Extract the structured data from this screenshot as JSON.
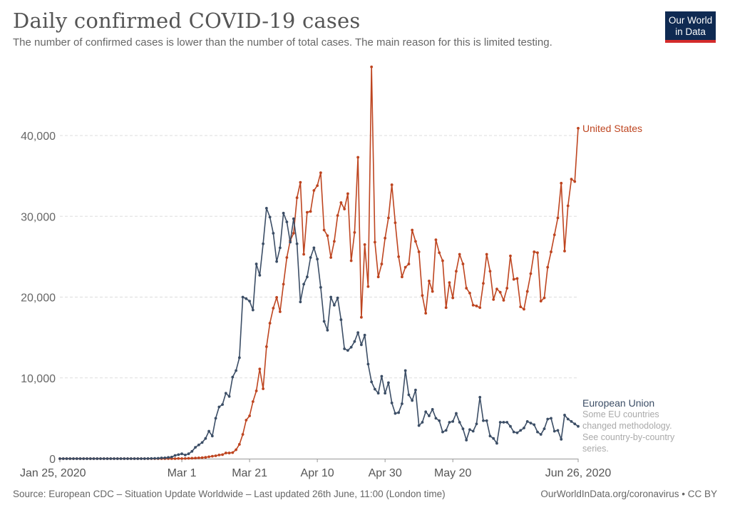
{
  "header": {
    "title": "Daily confirmed COVID-19 cases",
    "subtitle": "The number of confirmed cases is lower than the number of total cases. The main reason for this is limited testing.",
    "logo_line1": "Our World",
    "logo_line2": "in Data"
  },
  "footer": {
    "source": "Source: European CDC – Situation Update Worldwide – Last updated 26th June, 11:00 (London time)",
    "credit": "OurWorldInData.org/coronavirus • CC BY"
  },
  "chart_data": {
    "type": "line",
    "title": "Daily confirmed COVID-19 cases",
    "xlabel": "",
    "ylabel": "",
    "xlim": [
      "2020-01-25",
      "2020-06-26"
    ],
    "x_frequency": "daily",
    "ylim": [
      0,
      48500
    ],
    "grid": "horizontal dashed",
    "legend": "inline labels at line ends (right)",
    "x_tick_labels": [
      "Jan 25, 2020",
      "Mar 1",
      "Mar 21",
      "Apr 10",
      "Apr 30",
      "May 20",
      "Jun 26, 2020"
    ],
    "x_tick_dates": [
      "2020-01-25",
      "2020-03-01",
      "2020-03-21",
      "2020-04-10",
      "2020-04-30",
      "2020-05-20",
      "2020-06-26"
    ],
    "y_ticks": [
      0,
      10000,
      20000,
      30000,
      40000
    ],
    "y_tick_labels": [
      "0",
      "10,000",
      "20,000",
      "30,000",
      "40,000"
    ],
    "series": [
      {
        "name": "United States",
        "color": "#be4520",
        "values": [
          0,
          0,
          0,
          0,
          0,
          0,
          1,
          0,
          0,
          0,
          1,
          0,
          0,
          0,
          0,
          0,
          0,
          0,
          0,
          0,
          0,
          0,
          0,
          0,
          0,
          0,
          0,
          0,
          0,
          1,
          1,
          0,
          7,
          3,
          2,
          20,
          10,
          20,
          40,
          50,
          70,
          100,
          120,
          160,
          230,
          300,
          350,
          450,
          500,
          700,
          700,
          750,
          1100,
          1770,
          3000,
          4770,
          5300,
          7060,
          8390,
          11100,
          8650,
          13860,
          16770,
          18630,
          19960,
          18190,
          21600,
          24900,
          27000,
          27900,
          32300,
          34200,
          25300,
          30500,
          30600,
          33200,
          33800,
          35400,
          28300,
          27600,
          24900,
          26900,
          30100,
          31700,
          30900,
          32800,
          24500,
          28000,
          37300,
          17500,
          26500,
          21300,
          48500,
          26800,
          22500,
          24100,
          27300,
          29800,
          33900,
          29200,
          25000,
          22500,
          23700,
          24100,
          28300,
          26900,
          25600,
          20200,
          18000,
          22000,
          20700,
          27100,
          25500,
          24500,
          18700,
          21800,
          19900,
          23200,
          25300,
          24100,
          21100,
          20500,
          19000,
          18900,
          18700,
          21700,
          25300,
          23200,
          19700,
          21000,
          20600,
          19600,
          21100,
          25100,
          22200,
          22300,
          18800,
          18500,
          20700,
          22900,
          25600,
          25500,
          19500,
          19900,
          23700,
          25600,
          27700,
          29800,
          34100,
          25700,
          31300,
          34600,
          34300,
          40900
        ]
      },
      {
        "name": "European Union",
        "note": [
          "Some EU countries",
          "changed methodology.",
          "See country-by-country",
          "series."
        ],
        "color": "#3c4e66",
        "values": [
          0,
          0,
          0,
          1,
          0,
          0,
          0,
          2,
          1,
          0,
          0,
          0,
          0,
          1,
          2,
          0,
          0,
          1,
          0,
          0,
          0,
          0,
          1,
          1,
          2,
          3,
          10,
          20,
          30,
          40,
          90,
          100,
          150,
          200,
          400,
          500,
          600,
          450,
          600,
          900,
          1400,
          1700,
          2000,
          2500,
          3400,
          2800,
          5000,
          6400,
          6700,
          8100,
          7700,
          10100,
          10900,
          12500,
          20000,
          19800,
          19500,
          18400,
          24100,
          22700,
          26600,
          31000,
          29900,
          27900,
          24400,
          26100,
          30400,
          29300,
          26800,
          29700,
          26600,
          19400,
          21600,
          22500,
          24900,
          26100,
          24700,
          21200,
          17000,
          15900,
          20000,
          19000,
          19900,
          17200,
          13600,
          13400,
          13800,
          14500,
          15600,
          14100,
          15300,
          11700,
          9500,
          8600,
          8100,
          10200,
          8100,
          9400,
          6900,
          5600,
          5700,
          6800,
          10900,
          7900,
          7200,
          8500,
          4100,
          4500,
          5800,
          5300,
          6100,
          5000,
          4700,
          3300,
          3500,
          4500,
          4600,
          5600,
          4500,
          3700,
          2300,
          3600,
          3400,
          4300,
          7600,
          4700,
          4700,
          2800,
          2500,
          1900,
          4500,
          4500,
          4500,
          4000,
          3300,
          3200,
          3500,
          3800,
          4600,
          4400,
          4200,
          3300,
          3000,
          3700,
          4900,
          5000,
          3400,
          3500,
          2400,
          5400,
          4900,
          4600,
          4300,
          4000
        ]
      }
    ]
  }
}
